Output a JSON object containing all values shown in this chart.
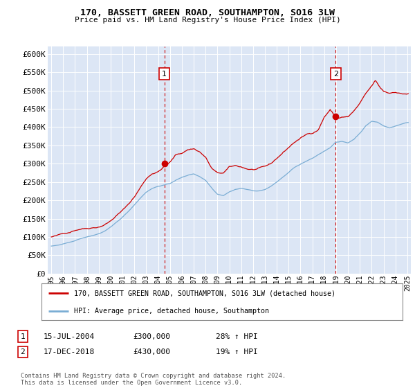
{
  "title": "170, BASSETT GREEN ROAD, SOUTHAMPTON, SO16 3LW",
  "subtitle": "Price paid vs. HM Land Registry's House Price Index (HPI)",
  "bg_color": "#dce6f5",
  "red_line_color": "#cc0000",
  "blue_line_color": "#7aadd4",
  "sale1_date": "15-JUL-2004",
  "sale1_price": 300000,
  "sale1_hpi": "28% ↑ HPI",
  "sale1_x": 2004.54,
  "sale2_date": "17-DEC-2018",
  "sale2_price": 430000,
  "sale2_hpi": "19% ↑ HPI",
  "sale2_x": 2018.96,
  "legend_line1": "170, BASSETT GREEN ROAD, SOUTHAMPTON, SO16 3LW (detached house)",
  "legend_line2": "HPI: Average price, detached house, Southampton",
  "footer": "Contains HM Land Registry data © Crown copyright and database right 2024.\nThis data is licensed under the Open Government Licence v3.0.",
  "ylim": [
    0,
    620000
  ],
  "yticks": [
    0,
    50000,
    100000,
    150000,
    200000,
    250000,
    300000,
    350000,
    400000,
    450000,
    500000,
    550000,
    600000
  ],
  "xlim_start": 1994.7,
  "xlim_end": 2025.3
}
